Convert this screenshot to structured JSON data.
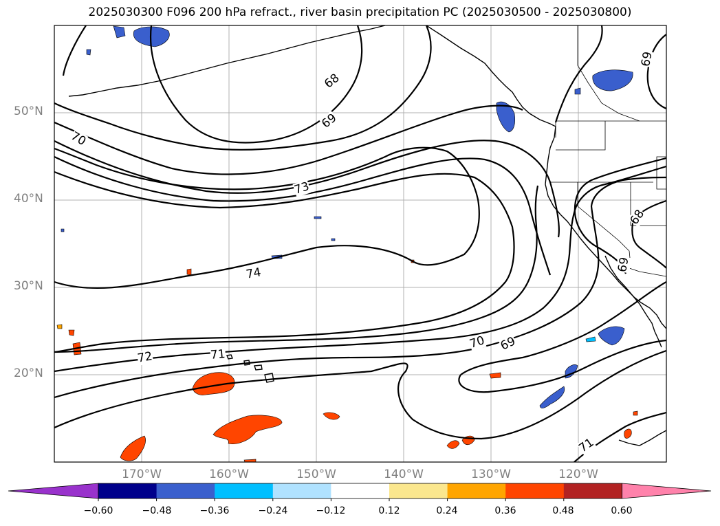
{
  "title": "2025030300 F096 200 hPa refract., river basin precipitation PC (2025030500 - 2025030800)",
  "lat_labels": [
    "50°N",
    "40°N",
    "30°N",
    "20°N"
  ],
  "lon_labels": [
    "170°W",
    "160°W",
    "150°W",
    "140°W",
    "130°W",
    "120°W"
  ],
  "contour_labels": [
    "68",
    "69",
    "70",
    "73",
    "74",
    "72",
    "71",
    "70",
    "69",
    "68",
    "69",
    "69",
    "71"
  ],
  "colorbar": {
    "colors": [
      "#9932cc",
      "#00008b",
      "#3a5fcd",
      "#00bfff",
      "#b0e2ff",
      "#ffffff",
      "#fbe78e",
      "#ffa500",
      "#ff4500",
      "#b22222",
      "#ff82ab"
    ],
    "ticks": [
      "−0.60",
      "−0.48",
      "−0.36",
      "−0.24",
      "−0.12",
      "0.12",
      "0.24",
      "0.36",
      "0.48",
      "0.60"
    ]
  },
  "map": {
    "extent": {
      "lon_min": -180,
      "lon_max": -110,
      "lat_min": 10,
      "lat_max": 60
    },
    "contour_color": "#000000",
    "grid_color": "#b0b0b0",
    "land_outline": "coastlines and US/Canada/Mexico state and country borders"
  }
}
